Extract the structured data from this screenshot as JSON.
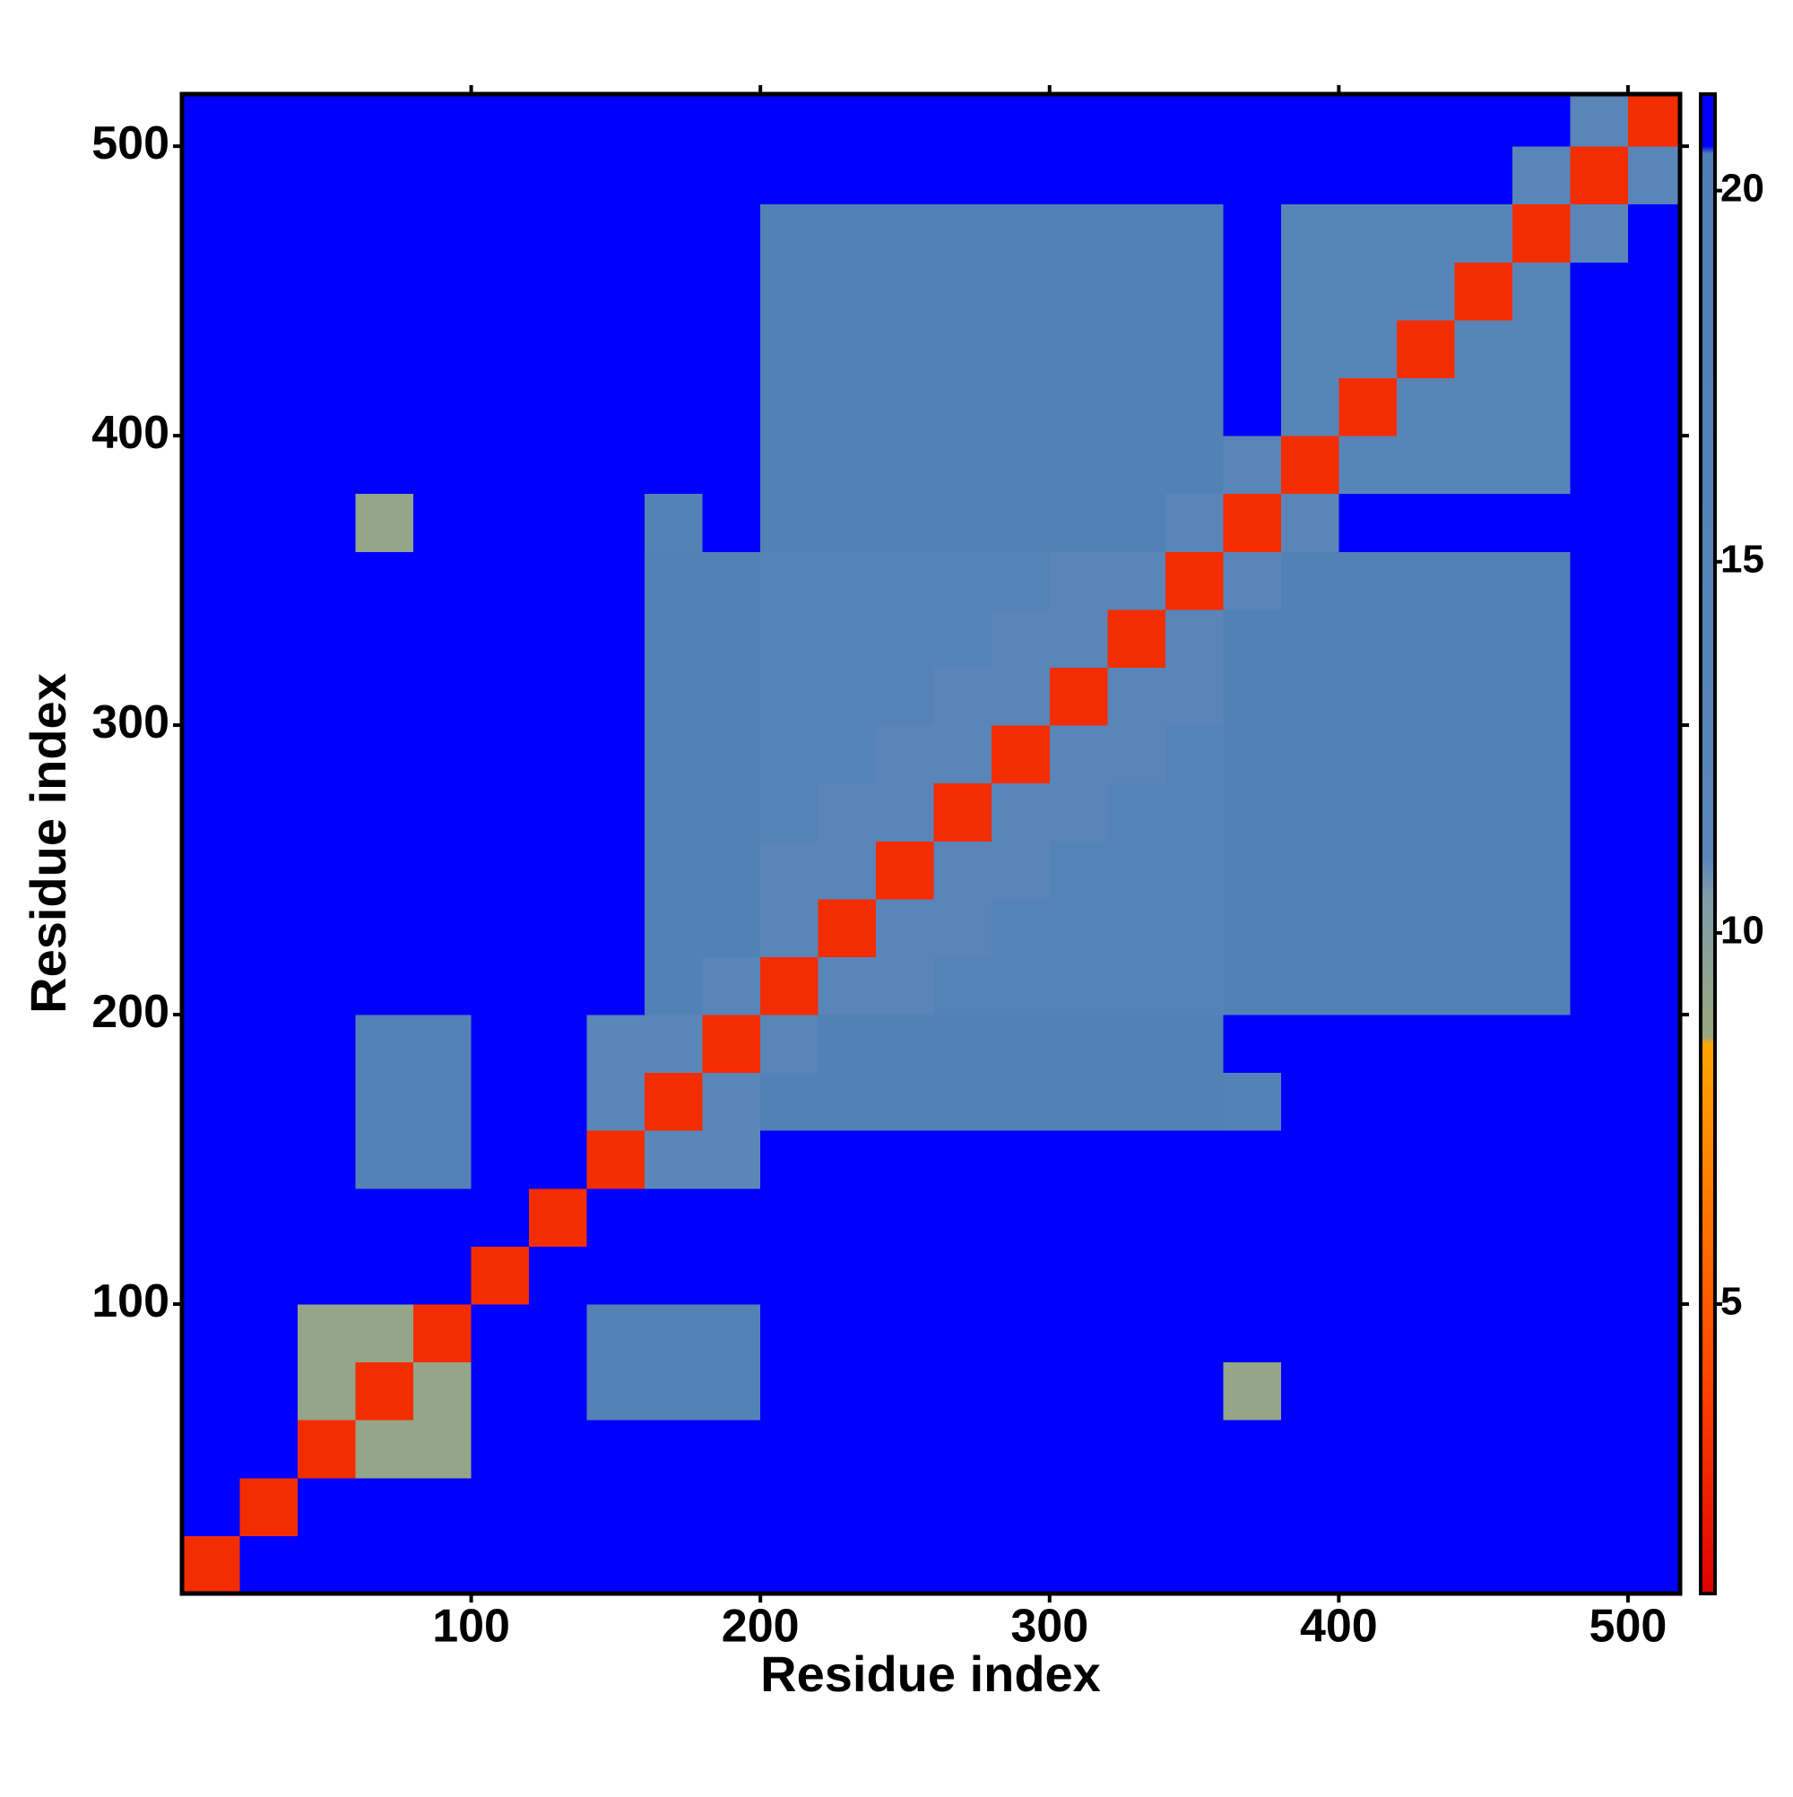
{
  "chart_data": {
    "type": "heatmap",
    "x_label": "Residue index",
    "y_label": "Residue index",
    "xlim": [
      0,
      518
    ],
    "ylim": [
      0,
      518
    ],
    "xticks": [
      100,
      200,
      300,
      400,
      500
    ],
    "yticks": [
      100,
      200,
      300,
      400,
      500
    ],
    "x": [
      10,
      30,
      50,
      70,
      90,
      110,
      130,
      150,
      170,
      190,
      210,
      230,
      250,
      270,
      290,
      310,
      330,
      350,
      370,
      390,
      410,
      430,
      450,
      470,
      490,
      510
    ],
    "y": [
      10,
      30,
      50,
      70,
      90,
      110,
      130,
      150,
      170,
      190,
      210,
      230,
      250,
      270,
      290,
      310,
      330,
      350,
      370,
      390,
      410,
      430,
      450,
      470,
      490,
      510
    ],
    "z": [
      [
        3,
        21,
        21,
        21,
        21,
        21,
        21,
        21,
        21,
        21,
        21,
        21,
        21,
        21,
        21,
        21,
        21,
        21,
        21,
        21,
        21,
        21,
        21,
        21,
        21,
        21
      ],
      [
        21,
        3,
        21,
        21,
        21,
        21,
        21,
        21,
        21,
        21,
        21,
        21,
        21,
        21,
        21,
        21,
        21,
        21,
        21,
        21,
        21,
        21,
        21,
        21,
        21,
        21
      ],
      [
        21,
        21,
        3,
        9,
        9,
        21,
        21,
        21,
        21,
        21,
        21,
        21,
        21,
        21,
        21,
        21,
        21,
        21,
        21,
        21,
        21,
        21,
        21,
        21,
        21,
        21
      ],
      [
        21,
        21,
        9,
        3,
        9,
        21,
        21,
        16,
        16,
        16,
        21,
        21,
        21,
        21,
        21,
        21,
        21,
        21,
        9,
        21,
        21,
        21,
        21,
        21,
        21,
        21
      ],
      [
        21,
        21,
        9,
        9,
        3,
        21,
        21,
        16,
        16,
        16,
        21,
        21,
        21,
        21,
        21,
        21,
        21,
        21,
        21,
        21,
        21,
        21,
        21,
        21,
        21,
        21
      ],
      [
        21,
        21,
        21,
        21,
        21,
        3,
        21,
        21,
        21,
        21,
        21,
        21,
        21,
        21,
        21,
        21,
        21,
        21,
        21,
        21,
        21,
        21,
        21,
        21,
        21,
        21
      ],
      [
        21,
        21,
        21,
        21,
        21,
        21,
        3,
        21,
        21,
        21,
        21,
        21,
        21,
        21,
        21,
        21,
        21,
        21,
        21,
        21,
        21,
        21,
        21,
        21,
        21,
        21
      ],
      [
        21,
        21,
        21,
        16,
        16,
        21,
        21,
        3,
        11,
        11,
        21,
        21,
        21,
        21,
        21,
        21,
        21,
        21,
        21,
        21,
        21,
        21,
        21,
        21,
        21,
        21
      ],
      [
        21,
        21,
        21,
        16,
        16,
        21,
        21,
        11,
        3,
        11,
        18,
        18,
        18,
        18,
        18,
        18,
        18,
        18,
        16,
        21,
        21,
        21,
        21,
        21,
        21,
        21
      ],
      [
        21,
        21,
        21,
        16,
        16,
        21,
        21,
        11,
        11,
        3,
        12,
        18,
        18,
        18,
        18,
        18,
        18,
        18,
        21,
        21,
        21,
        21,
        21,
        21,
        21,
        21
      ],
      [
        21,
        21,
        21,
        21,
        21,
        21,
        21,
        21,
        18,
        12,
        3,
        12,
        12,
        15,
        15,
        15,
        15,
        15,
        18,
        18,
        18,
        18,
        18,
        18,
        21,
        21
      ],
      [
        21,
        21,
        21,
        21,
        21,
        21,
        21,
        21,
        18,
        18,
        12,
        3,
        12,
        12,
        15,
        15,
        15,
        15,
        18,
        18,
        18,
        18,
        18,
        18,
        21,
        21
      ],
      [
        21,
        21,
        21,
        21,
        21,
        21,
        21,
        21,
        18,
        18,
        12,
        12,
        3,
        12,
        12,
        15,
        15,
        15,
        18,
        18,
        18,
        18,
        18,
        18,
        21,
        21
      ],
      [
        21,
        21,
        21,
        21,
        21,
        21,
        21,
        21,
        18,
        18,
        15,
        12,
        12,
        3,
        12,
        12,
        15,
        15,
        18,
        18,
        18,
        18,
        18,
        18,
        21,
        21
      ],
      [
        21,
        21,
        21,
        21,
        21,
        21,
        21,
        21,
        18,
        18,
        15,
        15,
        12,
        12,
        3,
        12,
        12,
        15,
        18,
        18,
        18,
        18,
        18,
        18,
        21,
        21
      ],
      [
        21,
        21,
        21,
        21,
        21,
        21,
        21,
        21,
        18,
        18,
        15,
        15,
        15,
        12,
        12,
        3,
        12,
        12,
        18,
        18,
        18,
        18,
        18,
        18,
        21,
        21
      ],
      [
        21,
        21,
        21,
        21,
        21,
        21,
        21,
        21,
        18,
        18,
        15,
        15,
        15,
        15,
        12,
        12,
        3,
        12,
        18,
        18,
        18,
        18,
        18,
        18,
        21,
        21
      ],
      [
        21,
        21,
        21,
        21,
        21,
        21,
        21,
        21,
        18,
        18,
        15,
        15,
        15,
        15,
        15,
        12,
        12,
        3,
        12,
        18,
        18,
        18,
        18,
        18,
        21,
        21
      ],
      [
        21,
        21,
        21,
        9,
        21,
        21,
        21,
        21,
        16,
        21,
        18,
        18,
        18,
        18,
        18,
        18,
        18,
        12,
        3,
        12,
        21,
        21,
        21,
        21,
        21,
        21
      ],
      [
        21,
        21,
        21,
        21,
        21,
        21,
        21,
        21,
        21,
        21,
        18,
        18,
        18,
        18,
        18,
        18,
        18,
        18,
        12,
        3,
        13,
        13,
        13,
        13,
        21,
        21
      ],
      [
        21,
        21,
        21,
        21,
        21,
        21,
        21,
        21,
        21,
        21,
        18,
        18,
        18,
        18,
        18,
        18,
        18,
        18,
        21,
        13,
        3,
        13,
        13,
        13,
        21,
        21
      ],
      [
        21,
        21,
        21,
        21,
        21,
        21,
        21,
        21,
        21,
        21,
        18,
        18,
        18,
        18,
        18,
        18,
        18,
        18,
        21,
        13,
        13,
        3,
        13,
        13,
        21,
        21
      ],
      [
        21,
        21,
        21,
        21,
        21,
        21,
        21,
        21,
        21,
        21,
        18,
        18,
        18,
        18,
        18,
        18,
        18,
        18,
        21,
        13,
        13,
        13,
        3,
        13,
        21,
        21
      ],
      [
        21,
        21,
        21,
        21,
        21,
        21,
        21,
        21,
        21,
        21,
        18,
        18,
        18,
        18,
        18,
        18,
        18,
        18,
        21,
        13,
        13,
        13,
        13,
        3,
        12,
        21
      ],
      [
        21,
        21,
        21,
        21,
        21,
        21,
        21,
        21,
        21,
        21,
        21,
        21,
        21,
        21,
        21,
        21,
        21,
        21,
        21,
        21,
        21,
        21,
        21,
        12,
        3,
        12
      ],
      [
        21,
        21,
        21,
        21,
        21,
        21,
        21,
        21,
        21,
        21,
        21,
        21,
        21,
        21,
        21,
        21,
        21,
        21,
        21,
        21,
        21,
        21,
        21,
        21,
        12,
        3
      ]
    ],
    "colorbar": {
      "zlim": [
        1.1,
        21.3
      ],
      "ticks": [
        5,
        10,
        15,
        20
      ],
      "colorscale": [
        {
          "value": 1.1,
          "color": "#e00000"
        },
        {
          "value": 4,
          "color": "#ff4500"
        },
        {
          "value": 8.5,
          "color": "#ffa500"
        },
        {
          "value": 8.6,
          "color": "#9aa880"
        },
        {
          "value": 10.5,
          "color": "#7f9cab"
        },
        {
          "value": 11,
          "color": "#5a86b8"
        },
        {
          "value": 20.5,
          "color": "#4f7fb5"
        },
        {
          "value": 20.6,
          "color": "#0000ff"
        },
        {
          "value": 21.3,
          "color": "#0000ff"
        }
      ]
    }
  }
}
